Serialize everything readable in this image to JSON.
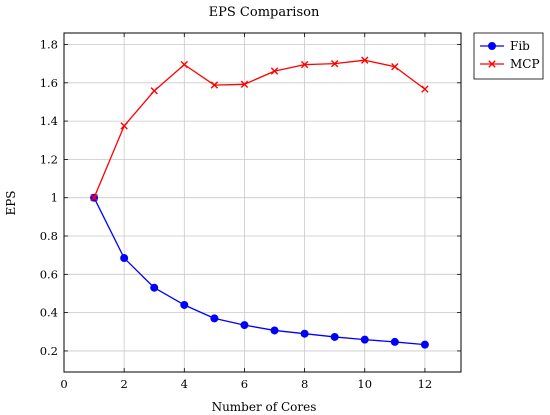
{
  "chart_data": {
    "type": "line",
    "title": "EPS Comparison",
    "xlabel": "Number of Cores",
    "ylabel": "EPS",
    "xlim": [
      0,
      13.2
    ],
    "ylim": [
      0.09,
      1.86
    ],
    "xticks": [
      0,
      2,
      4,
      6,
      8,
      10,
      12
    ],
    "yticks": [
      0.2,
      0.4,
      0.6,
      0.8,
      1,
      1.2,
      1.4,
      1.6,
      1.8
    ],
    "grid": true,
    "legend_position": "outside-top-right",
    "x": [
      1,
      2,
      3,
      4,
      5,
      6,
      7,
      8,
      9,
      10,
      11,
      12
    ],
    "series": [
      {
        "name": "Fib",
        "color": "#0000ff",
        "marker": "circle",
        "values": [
          1.0,
          0.685,
          0.53,
          0.44,
          0.37,
          0.335,
          0.307,
          0.29,
          0.273,
          0.259,
          0.247,
          0.233
        ]
      },
      {
        "name": "MCP",
        "color": "#ff0000",
        "marker": "cross",
        "values": [
          1.0,
          1.375,
          1.558,
          1.695,
          1.588,
          1.592,
          1.661,
          1.695,
          1.7,
          1.718,
          1.684,
          1.567
        ]
      }
    ]
  }
}
